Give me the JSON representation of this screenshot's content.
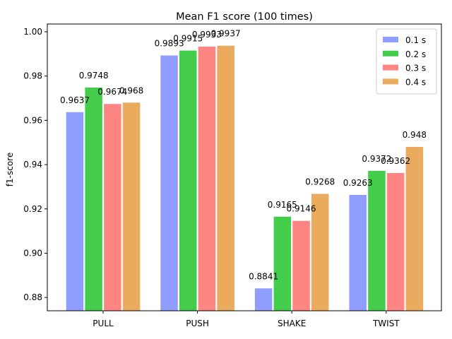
{
  "chart_data": {
    "type": "bar",
    "title": "Mean F1 score (100 times)",
    "xlabel": "",
    "ylabel": "f1-score",
    "categories": [
      "PULL",
      "PUSH",
      "SHAKE",
      "TWIST"
    ],
    "series": [
      {
        "name": "0.1 s",
        "color": "#8f9dff",
        "values": [
          0.9637,
          0.9893,
          0.8841,
          0.9263
        ],
        "labels": [
          "0.9637",
          "0.9893",
          "0.8841",
          "0.9263"
        ]
      },
      {
        "name": "0.2 s",
        "color": "#44cc4b",
        "values": [
          0.9748,
          0.9915,
          0.9165,
          0.9372
        ],
        "labels": [
          "0.9748",
          "0.9915",
          "0.9165",
          "0.9372"
        ]
      },
      {
        "name": "0.3 s",
        "color": "#ff8582",
        "values": [
          0.9674,
          0.9933,
          0.9146,
          0.9362
        ],
        "labels": [
          "0.9674",
          "0.9933",
          "0.9146",
          "0.9362"
        ]
      },
      {
        "name": "0.4 s",
        "color": "#ebab5e",
        "values": [
          0.968,
          0.9937,
          0.9268,
          0.948
        ],
        "labels": [
          "0.968",
          "0.9937",
          "0.9268",
          "0.948"
        ]
      }
    ],
    "ylim": [
      0.874,
      1.0035
    ],
    "yticks": [
      0.88,
      0.9,
      0.92,
      0.94,
      0.96,
      0.98,
      1.0
    ],
    "ytick_labels": [
      "0.88",
      "0.90",
      "0.92",
      "0.94",
      "0.96",
      "0.98",
      "1.00"
    ],
    "legend_position": "top-right",
    "grid": false
  }
}
